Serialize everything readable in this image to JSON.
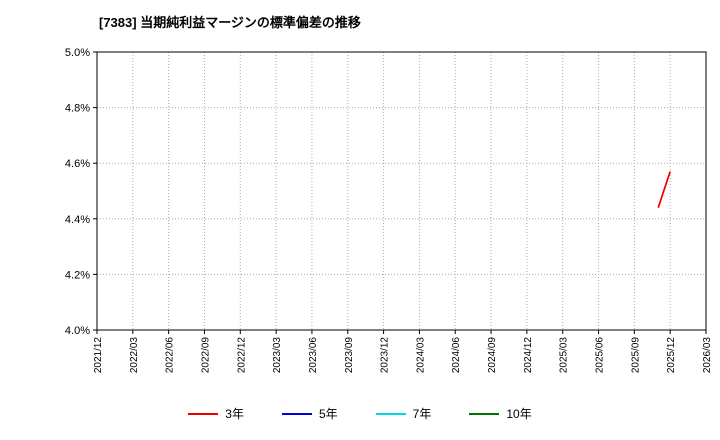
{
  "title": "[7383]  当期純利益マージンの標準偏差の推移",
  "chart_data": {
    "type": "line",
    "title": "[7383]  当期純利益マージンの標準偏差の推移",
    "xlabel": "",
    "ylabel": "",
    "x_range": [
      "2021/12",
      "2026/03"
    ],
    "ylim": [
      4.0,
      5.0
    ],
    "grid": true,
    "grid_style": "dotted",
    "x_ticks": [
      "2021/12",
      "2022/03",
      "2022/06",
      "2022/09",
      "2022/12",
      "2023/03",
      "2023/06",
      "2023/09",
      "2023/12",
      "2024/03",
      "2024/06",
      "2024/09",
      "2024/12",
      "2025/03",
      "2025/06",
      "2025/09",
      "2025/12",
      "2026/03"
    ],
    "y_ticks": [
      4.0,
      4.2,
      4.4,
      4.6,
      4.8,
      5.0
    ],
    "y_tick_format": "percent1",
    "legend_position": "bottom",
    "series": [
      {
        "name": "3年",
        "color": "#ee0000",
        "points": [
          [
            "2025/11",
            4.44
          ],
          [
            "2025/12",
            4.57
          ]
        ]
      },
      {
        "name": "5年",
        "color": "#0000dd",
        "points": []
      },
      {
        "name": "7年",
        "color": "#00d8e8",
        "points": []
      },
      {
        "name": "10年",
        "color": "#007700",
        "points": []
      }
    ]
  },
  "legend": {
    "items": [
      {
        "label": "3年",
        "color": "#ee0000"
      },
      {
        "label": "5年",
        "color": "#0000dd"
      },
      {
        "label": "7年",
        "color": "#00d8e8"
      },
      {
        "label": "10年",
        "color": "#007700"
      }
    ]
  },
  "colors": {
    "grid": "#aaaaaa",
    "frame": "#000000",
    "tick_text": "#000000",
    "background": "#ffffff"
  }
}
